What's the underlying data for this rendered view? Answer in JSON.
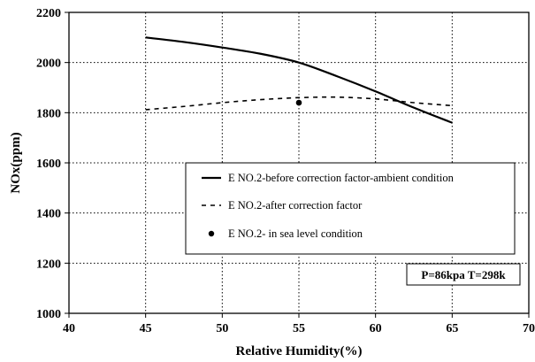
{
  "chart_data": {
    "type": "line",
    "xlabel": "Relative Humidity(%)",
    "ylabel": "NOx(ppm)",
    "xlim": [
      40,
      70
    ],
    "ylim": [
      1000,
      2200
    ],
    "xticks": [
      40,
      45,
      50,
      55,
      60,
      65,
      70
    ],
    "yticks": [
      1000,
      1200,
      1400,
      1600,
      1800,
      2000,
      2200
    ],
    "x_tick_labels": [
      "40",
      "45",
      "50",
      "55",
      "60",
      "65",
      "70"
    ],
    "y_tick_labels": [
      "1000",
      "1200",
      "1400",
      "1600",
      "1800",
      "2000",
      "2200"
    ],
    "grid": true,
    "legend_position": "center-right",
    "series": [
      {
        "name": "E NO.2-before correction factor-ambient condition",
        "style": "solid",
        "color": "#000000",
        "x": [
          45,
          47.5,
          50,
          52.5,
          55,
          57.5,
          60,
          62.5,
          65
        ],
        "y": [
          2100,
          2082,
          2060,
          2035,
          2000,
          1945,
          1885,
          1820,
          1760
        ]
      },
      {
        "name": "E NO.2-after correction factor",
        "style": "dashed",
        "color": "#000000",
        "x": [
          45,
          47.5,
          50,
          52.5,
          55,
          57.5,
          60,
          62.5,
          65
        ],
        "y": [
          1812,
          1825,
          1840,
          1852,
          1860,
          1862,
          1855,
          1840,
          1828
        ]
      },
      {
        "name": "E NO.2- in sea level condition",
        "style": "marker",
        "color": "#000000",
        "x": [
          55
        ],
        "y": [
          1840
        ]
      }
    ],
    "annotation": "P=86kpa T=298k"
  }
}
